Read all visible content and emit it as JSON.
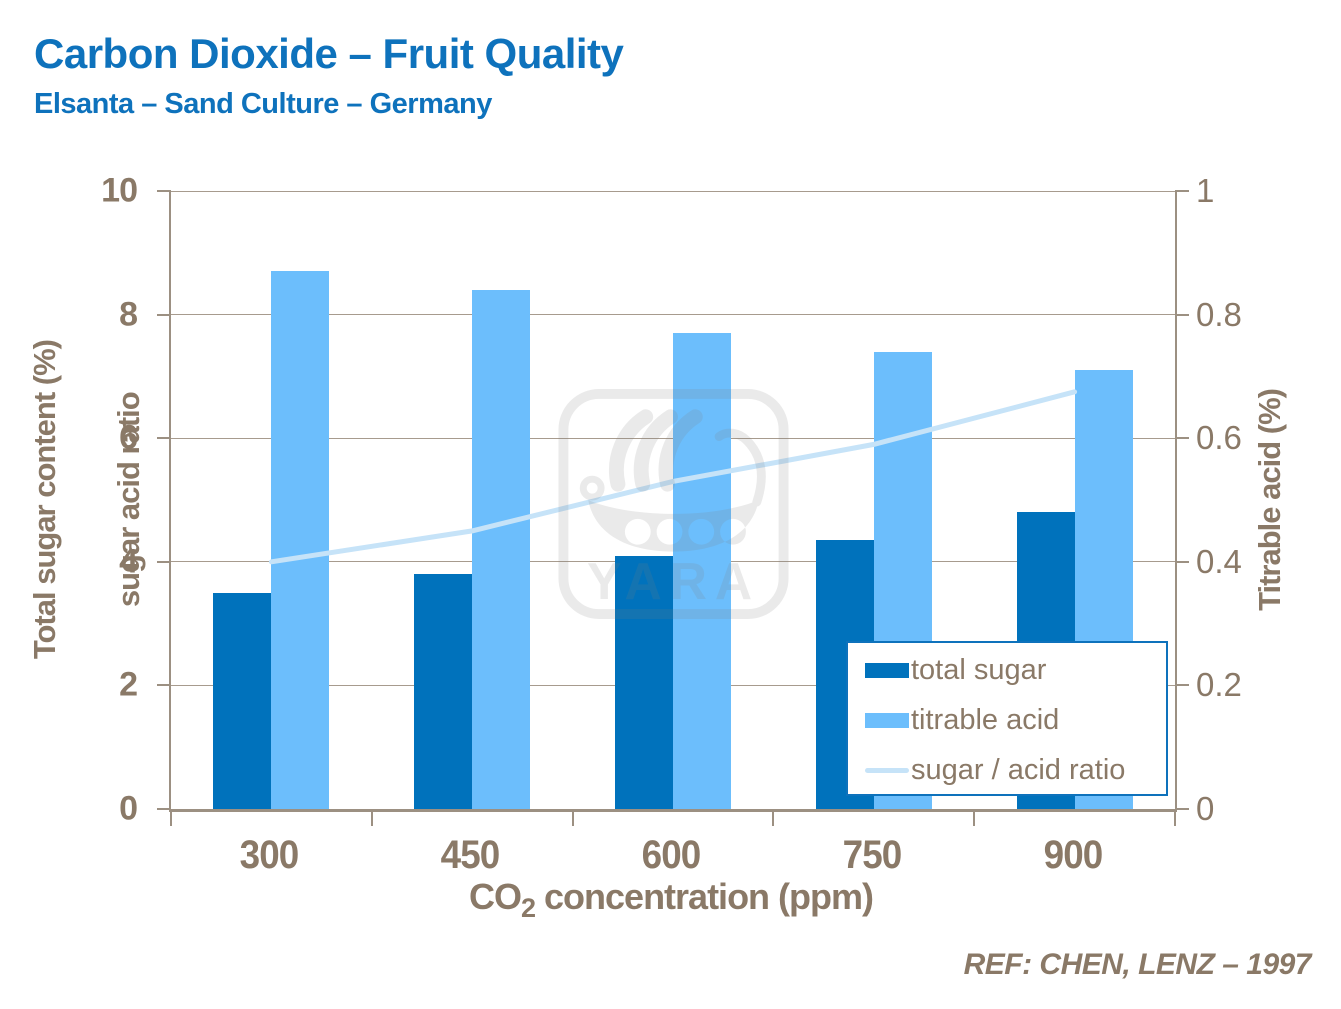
{
  "header": {
    "title": "Carbon Dioxide – Fruit Quality",
    "subtitle": "Elsanta – Sand Culture – Germany"
  },
  "footer": {
    "reference": "REF: CHEN, LENZ – 1997"
  },
  "watermark": {
    "name": "yara-logo",
    "text": "YARA"
  },
  "colors": {
    "title_blue": "#0E72BC",
    "total_sugar_bar": "#0072BC",
    "titrable_acid_bar": "#6CBEFC",
    "ratio_line": "#C6E3F8",
    "axis_text_brown": "#8A7967",
    "gridline": "#A79B8E",
    "legend_border": "#0E72BC"
  },
  "chart_data": {
    "type": "combo",
    "categories": [
      "300",
      "450",
      "600",
      "750",
      "900"
    ],
    "x_axis": {
      "title_co": "CO",
      "title_sub": "2",
      "title_rest": " concentration (ppm)"
    },
    "left_axis": {
      "title_line1": "Total sugar content (%)",
      "title_line2": "sugar acid ratio",
      "min": 0,
      "max": 10,
      "ticks": [
        10,
        8,
        6,
        4,
        2,
        0
      ]
    },
    "right_axis": {
      "title": "Titrable acid (%)",
      "min": 0,
      "max": 1,
      "ticks": [
        "1",
        "0.8",
        "0.6",
        "0.4",
        "0.2",
        "0"
      ]
    },
    "series": [
      {
        "name": "total sugar",
        "type": "bar",
        "axis": "left",
        "color": "#0072BC",
        "values": [
          3.5,
          3.8,
          4.1,
          4.35,
          4.8
        ]
      },
      {
        "name": "titrable acid",
        "type": "bar",
        "axis": "right",
        "color": "#6CBEFC",
        "values": [
          0.87,
          0.84,
          0.77,
          0.74,
          0.71
        ]
      },
      {
        "name": "sugar / acid ratio",
        "type": "line",
        "axis": "left",
        "color": "#C6E3F8",
        "values": [
          4.0,
          4.5,
          5.3,
          5.9,
          6.75
        ]
      }
    ],
    "legend": {
      "position": "inside-bottom-right",
      "entries": [
        "total sugar",
        "titrable acid",
        "sugar / acid ratio"
      ]
    },
    "grid": true
  }
}
